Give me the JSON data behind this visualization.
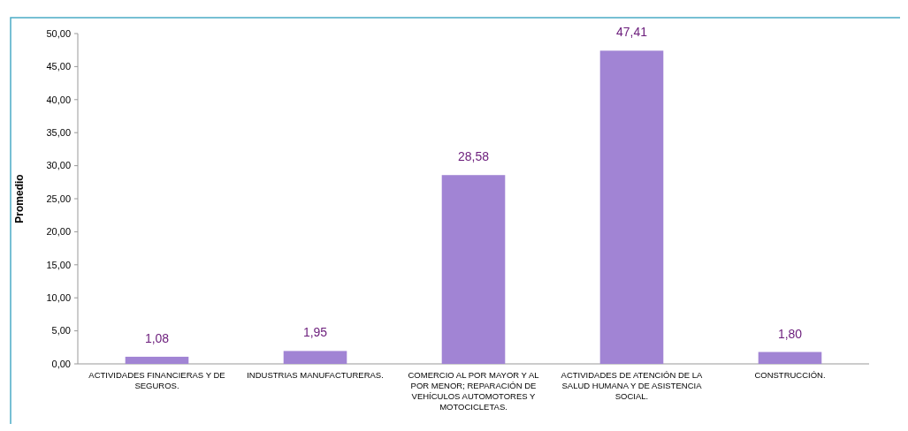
{
  "chart_data": {
    "type": "bar",
    "ylabel": "Promedio",
    "categories": [
      "ACTIVIDADES FINANCIERAS Y DE SEGUROS.",
      "INDUSTRIAS MANUFACTURERAS.",
      "COMERCIO AL POR MAYOR Y AL POR MENOR; REPARACIÓN DE VEHÍCULOS AUTOMOTORES Y MOTOCICLETAS.",
      "ACTIVIDADES DE ATENCIÓN DE LA SALUD HUMANA Y DE ASISTENCIA SOCIAL.",
      "CONSTRUCCIÓN."
    ],
    "values": [
      1.08,
      1.95,
      28.58,
      47.41,
      1.8
    ],
    "value_labels": [
      "1,08",
      "1,95",
      "28,58",
      "47,41",
      "1,80"
    ],
    "color": "#a184d4",
    "ylim": [
      0,
      50
    ],
    "yticks": [
      {
        "value": 0,
        "label": "0,00"
      },
      {
        "value": 5,
        "label": "5,00"
      },
      {
        "value": 10,
        "label": "10,00"
      },
      {
        "value": 15,
        "label": "15,00"
      },
      {
        "value": 20,
        "label": "20,00"
      },
      {
        "value": 25,
        "label": "25,00"
      },
      {
        "value": 30,
        "label": "30,00"
      },
      {
        "value": 35,
        "label": "35,00"
      },
      {
        "value": 40,
        "label": "40,00"
      },
      {
        "value": 45,
        "label": "45,00"
      },
      {
        "value": 50,
        "label": "50,00"
      }
    ],
    "grid": false
  }
}
